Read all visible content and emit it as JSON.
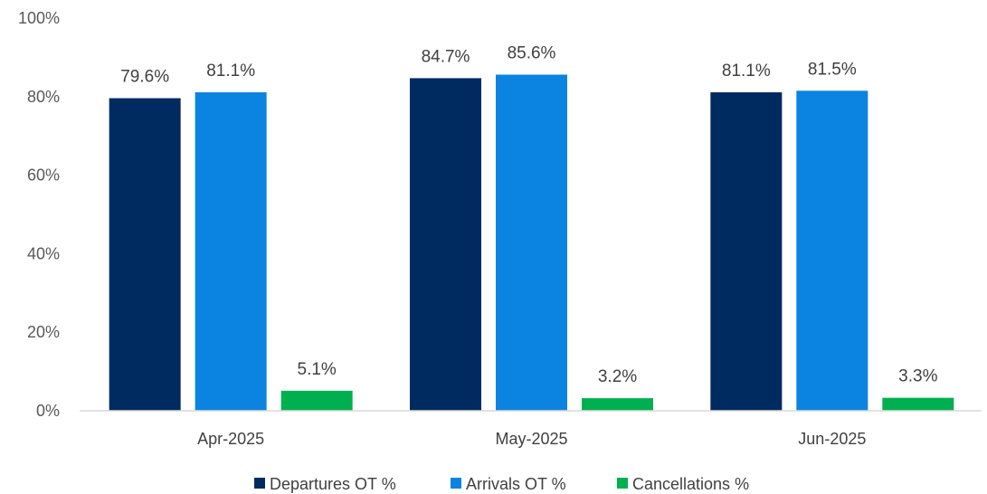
{
  "chart_data": {
    "type": "bar",
    "categories": [
      "Apr-2025",
      "May-2025",
      "Jun-2025"
    ],
    "series": [
      {
        "name": "Departures OT %",
        "values": [
          79.6,
          84.7,
          81.1
        ],
        "labels": [
          "79.6%",
          "84.7%",
          "81.1%"
        ],
        "color": "#002B61"
      },
      {
        "name": "Arrivals OT %",
        "values": [
          81.1,
          85.6,
          81.5
        ],
        "labels": [
          "81.1%",
          "85.6%",
          "81.5%"
        ],
        "color": "#0A84E0"
      },
      {
        "name": "Cancellations %",
        "values": [
          5.1,
          3.2,
          3.3
        ],
        "labels": [
          "5.1%",
          "3.2%",
          "3.3%"
        ],
        "color": "#00B050"
      }
    ],
    "ylim": [
      0,
      100
    ],
    "yticks": [
      0,
      20,
      40,
      60,
      80,
      100
    ],
    "ytick_labels": [
      "0%",
      "20%",
      "40%",
      "60%",
      "80%",
      "100%"
    ],
    "grid": false,
    "legend": "bottom",
    "title": "",
    "xlabel": "",
    "ylabel": ""
  }
}
